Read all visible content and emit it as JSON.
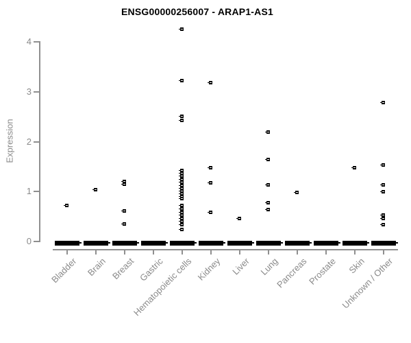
{
  "title": "ENSG00000256007 - ARAP1-AS1",
  "colors": {
    "background": "#ffffff",
    "axis": "#8f8f8f",
    "axis_text": "#8a8a8a",
    "marker": "#000000",
    "title_text": "#000000"
  },
  "chart_data": {
    "type": "scatter",
    "title": "ENSG00000256007 - ARAP1-AS1",
    "xlabel": "",
    "ylabel": "Expression",
    "ylim": [
      0,
      4.3
    ],
    "yticks": [
      0,
      1,
      2,
      3,
      4
    ],
    "grid": false,
    "legend": false,
    "marker_style": "tiny black square with white horizontal center dash",
    "categories": [
      "Bladder",
      "Brain",
      "Breast",
      "Gastric",
      "Hematopoietic cells",
      "Kidney",
      "Liver",
      "Lung",
      "Pancreas",
      "Prostate",
      "Skin",
      "Unknown / Other"
    ],
    "zero_cluster_note": "every category shows a dense horizontal black dash of many overlapping samples at expression 0",
    "nonzero_points": {
      "Bladder": [
        0.72
      ],
      "Brain": [
        1.03
      ],
      "Breast": [
        1.2,
        1.14,
        0.61,
        0.34
      ],
      "Gastric": [],
      "Hematopoietic cells": [
        4.25,
        3.22,
        2.5,
        2.42,
        1.42,
        1.36,
        1.3,
        1.24,
        1.18,
        1.12,
        1.06,
        1.0,
        0.95,
        0.9,
        0.85,
        0.72,
        0.65,
        0.58,
        0.52,
        0.46,
        0.4,
        0.33,
        0.23
      ],
      "Kidney": [
        3.18,
        1.47,
        1.17,
        0.58
      ],
      "Liver": [
        0.46
      ],
      "Lung": [
        2.19,
        1.64,
        1.13,
        0.77,
        0.63
      ],
      "Pancreas": [
        0.98
      ],
      "Prostate": [],
      "Skin": [
        1.47
      ],
      "Unknown / Other": [
        2.77,
        1.52,
        1.13,
        0.99,
        0.52,
        0.45,
        0.33
      ]
    }
  }
}
